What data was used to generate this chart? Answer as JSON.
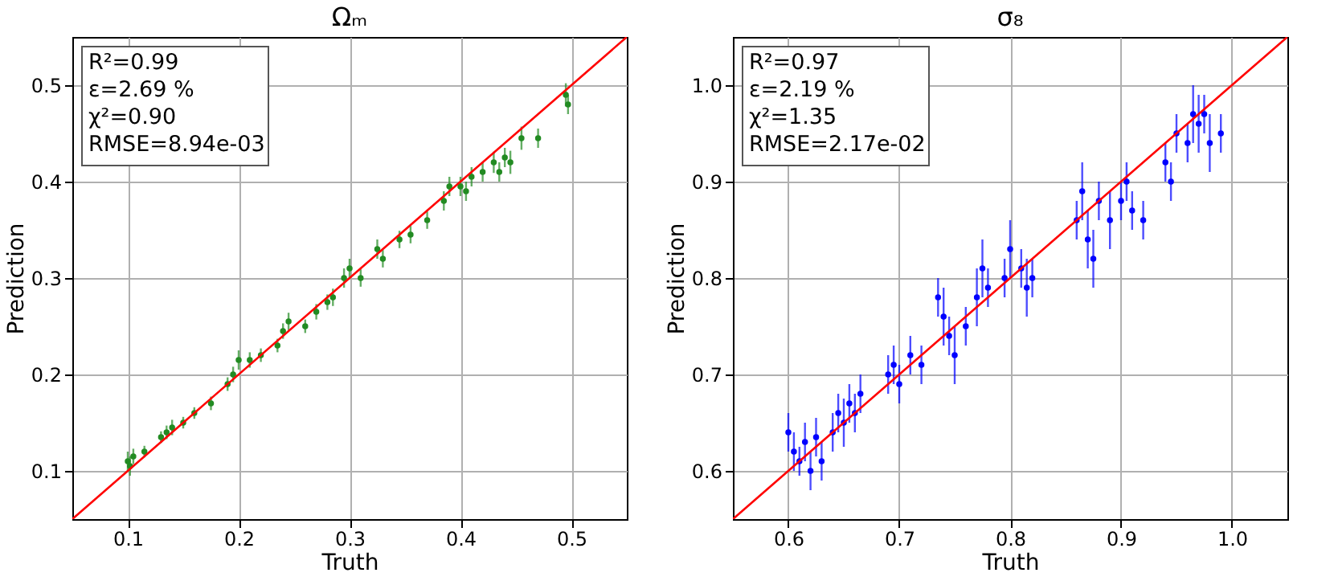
{
  "chart_data": [
    {
      "type": "scatter",
      "title": "Ωₘ",
      "xlabel": "Truth",
      "ylabel": "Prediction",
      "xlim": [
        0.05,
        0.55
      ],
      "ylim": [
        0.05,
        0.55
      ],
      "xticks": [
        0.1,
        0.2,
        0.3,
        0.4,
        0.5
      ],
      "yticks": [
        0.1,
        0.2,
        0.3,
        0.4,
        0.5
      ],
      "grid": true,
      "annotations": [
        "R²=0.99",
        "ε=2.69 %",
        "χ²=0.90",
        "RMSE=8.94e-03"
      ],
      "series": [
        {
          "color": "#228b22",
          "marker": "circle",
          "x": [
            0.1,
            0.102,
            0.105,
            0.115,
            0.13,
            0.135,
            0.14,
            0.15,
            0.16,
            0.175,
            0.19,
            0.195,
            0.2,
            0.21,
            0.22,
            0.235,
            0.24,
            0.245,
            0.26,
            0.27,
            0.28,
            0.285,
            0.295,
            0.3,
            0.31,
            0.325,
            0.33,
            0.345,
            0.355,
            0.37,
            0.385,
            0.39,
            0.4,
            0.405,
            0.41,
            0.42,
            0.43,
            0.435,
            0.44,
            0.445,
            0.455,
            0.47,
            0.495,
            0.497
          ],
          "values": [
            0.11,
            0.105,
            0.115,
            0.12,
            0.135,
            0.14,
            0.145,
            0.15,
            0.16,
            0.17,
            0.19,
            0.2,
            0.215,
            0.215,
            0.22,
            0.23,
            0.245,
            0.255,
            0.25,
            0.265,
            0.275,
            0.28,
            0.3,
            0.31,
            0.3,
            0.33,
            0.32,
            0.34,
            0.345,
            0.36,
            0.38,
            0.395,
            0.395,
            0.39,
            0.405,
            0.41,
            0.42,
            0.41,
            0.425,
            0.42,
            0.445,
            0.445,
            0.49,
            0.48
          ],
          "errors": [
            0.01,
            0.01,
            0.008,
            0.006,
            0.006,
            0.007,
            0.008,
            0.006,
            0.006,
            0.007,
            0.007,
            0.008,
            0.01,
            0.008,
            0.007,
            0.007,
            0.008,
            0.009,
            0.007,
            0.008,
            0.008,
            0.009,
            0.01,
            0.01,
            0.009,
            0.01,
            0.009,
            0.009,
            0.009,
            0.009,
            0.01,
            0.01,
            0.01,
            0.01,
            0.01,
            0.01,
            0.011,
            0.01,
            0.01,
            0.012,
            0.012,
            0.01,
            0.012,
            0.01
          ]
        },
        {
          "type": "line",
          "color": "#ff0000",
          "x": [
            0.05,
            0.55
          ],
          "values": [
            0.05,
            0.55
          ]
        }
      ]
    },
    {
      "type": "scatter",
      "title": "σ₈",
      "xlabel": "Truth",
      "ylabel": "Prediction",
      "xlim": [
        0.55,
        1.05
      ],
      "ylim": [
        0.55,
        1.05
      ],
      "xticks": [
        0.6,
        0.7,
        0.8,
        0.9,
        {
          "value": 1.0,
          "label": "1.0"
        }
      ],
      "yticks": [
        0.6,
        0.7,
        0.8,
        0.9,
        {
          "value": 1.0,
          "label": "1.0"
        }
      ],
      "grid": true,
      "annotations": [
        "R²=0.97",
        "ε=2.19 %",
        "χ²=1.35",
        "RMSE=2.17e-02"
      ],
      "series": [
        {
          "color": "#0000ff",
          "marker": "circle",
          "x": [
            0.6,
            0.605,
            0.61,
            0.615,
            0.62,
            0.625,
            0.63,
            0.64,
            0.645,
            0.65,
            0.655,
            0.66,
            0.665,
            0.69,
            0.695,
            0.7,
            0.71,
            0.72,
            0.735,
            0.74,
            0.745,
            0.75,
            0.76,
            0.77,
            0.775,
            0.78,
            0.795,
            0.8,
            0.81,
            0.815,
            0.82,
            0.86,
            0.865,
            0.87,
            0.875,
            0.88,
            0.89,
            0.9,
            0.905,
            0.91,
            0.92,
            0.94,
            0.945,
            0.95,
            0.96,
            0.965,
            0.97,
            0.975,
            0.98,
            0.99
          ],
          "values": [
            0.64,
            0.62,
            0.61,
            0.63,
            0.6,
            0.635,
            0.61,
            0.64,
            0.66,
            0.65,
            0.67,
            0.66,
            0.68,
            0.7,
            0.71,
            0.69,
            0.72,
            0.71,
            0.78,
            0.76,
            0.74,
            0.72,
            0.75,
            0.78,
            0.81,
            0.79,
            0.8,
            0.83,
            0.81,
            0.79,
            0.8,
            0.86,
            0.89,
            0.84,
            0.82,
            0.88,
            0.86,
            0.88,
            0.9,
            0.87,
            0.86,
            0.92,
            0.9,
            0.95,
            0.94,
            0.97,
            0.96,
            0.97,
            0.94,
            0.95
          ],
          "errors": [
            0.02,
            0.02,
            0.015,
            0.02,
            0.02,
            0.02,
            0.02,
            0.02,
            0.02,
            0.025,
            0.02,
            0.02,
            0.02,
            0.02,
            0.02,
            0.02,
            0.02,
            0.02,
            0.02,
            0.03,
            0.02,
            0.03,
            0.02,
            0.03,
            0.03,
            0.02,
            0.02,
            0.03,
            0.02,
            0.03,
            0.02,
            0.02,
            0.03,
            0.03,
            0.03,
            0.02,
            0.03,
            0.02,
            0.02,
            0.02,
            0.02,
            0.02,
            0.02,
            0.02,
            0.02,
            0.03,
            0.03,
            0.02,
            0.03,
            0.02
          ]
        },
        {
          "type": "line",
          "color": "#ff0000",
          "x": [
            0.55,
            1.05
          ],
          "values": [
            0.55,
            1.05
          ]
        }
      ]
    }
  ]
}
